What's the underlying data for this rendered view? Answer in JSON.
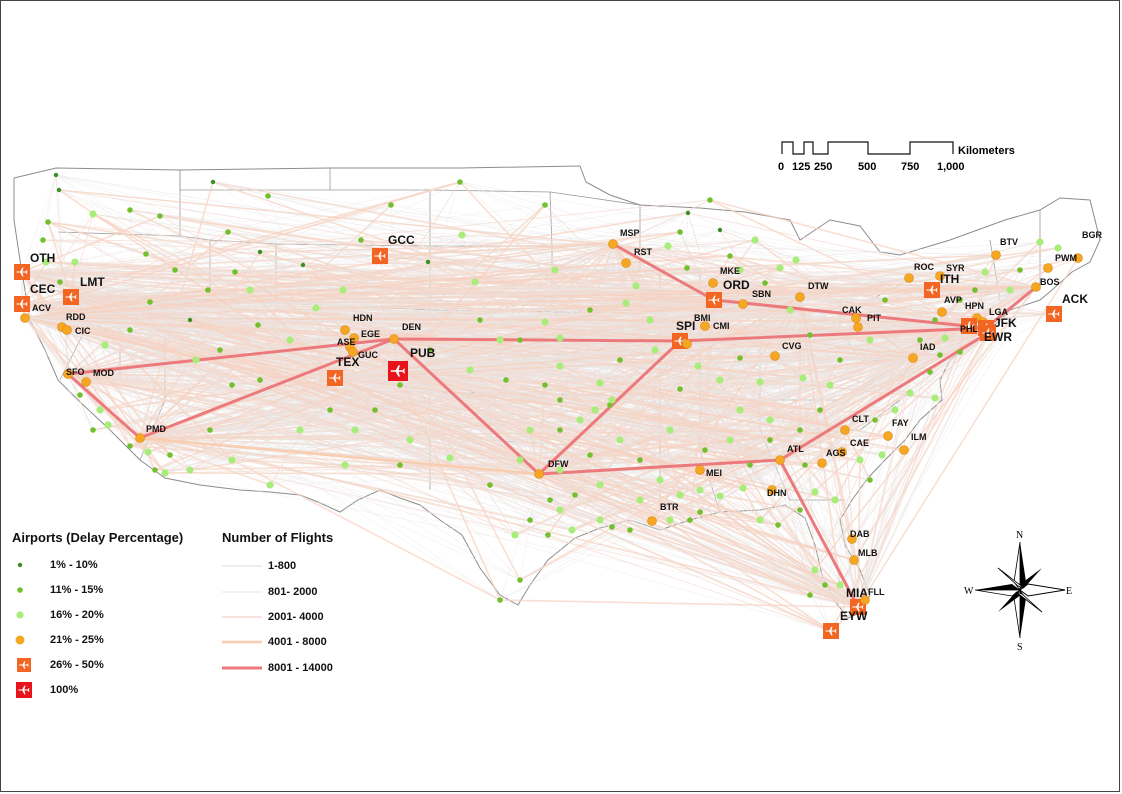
{
  "scalebar": {
    "unit": "Kilometers",
    "ticks": [
      "0",
      "125",
      "250",
      "500",
      "750",
      "1,000"
    ]
  },
  "legend": {
    "airports_title": "Airports (Delay Percentage)",
    "airports": [
      {
        "label": "1% - 10%",
        "symbol": "dot-small",
        "color": "#3a8f24"
      },
      {
        "label": "11% - 15%",
        "symbol": "dot-medium",
        "color": "#73c02f"
      },
      {
        "label": "16% - 20%",
        "symbol": "dot-large",
        "color": "#a8ec7a"
      },
      {
        "label": "21% - 25%",
        "symbol": "dot-orange",
        "color": "#f5a623"
      },
      {
        "label": "26% - 50%",
        "symbol": "plane-orange",
        "color": "#f26522"
      },
      {
        "label": "100%",
        "symbol": "plane-red",
        "color": "#e8141b"
      }
    ],
    "flights_title": "Number of Flights",
    "flights": [
      {
        "label": "1-800",
        "color": "#eeeeee",
        "width": 1
      },
      {
        "label": "801- 2000",
        "color": "#e6e6e6",
        "width": 1
      },
      {
        "label": "2001- 4000",
        "color": "#f3d9cf",
        "width": 1.5
      },
      {
        "label": "4001 - 8000",
        "color": "#f8cdb0",
        "width": 2.5
      },
      {
        "label": "8001 - 14000",
        "color": "#ec7a7c",
        "width": 3
      }
    ]
  },
  "compass": {
    "n": "N",
    "s": "S",
    "e": "E",
    "w": "W"
  },
  "airports": [
    {
      "code": "OTH",
      "cls": "plane-orange",
      "icon": "airplane-icon"
    },
    {
      "code": "CEC",
      "cls": "plane-orange",
      "icon": "airplane-icon"
    },
    {
      "code": "ACV",
      "cls": "dot-orange"
    },
    {
      "code": "LMT",
      "cls": "plane-orange",
      "icon": "airplane-icon"
    },
    {
      "code": "RDD",
      "cls": "dot-orange"
    },
    {
      "code": "CIC",
      "cls": "dot-orange"
    },
    {
      "code": "SFO",
      "cls": "dot-orange"
    },
    {
      "code": "MOD",
      "cls": "dot-orange"
    },
    {
      "code": "PMD",
      "cls": "dot-orange"
    },
    {
      "code": "GCC",
      "cls": "plane-orange",
      "icon": "airplane-icon"
    },
    {
      "code": "HDN",
      "cls": "dot-orange"
    },
    {
      "code": "EGE",
      "cls": "dot-orange"
    },
    {
      "code": "ASE",
      "cls": "dot-orange"
    },
    {
      "code": "GUC",
      "cls": "dot-orange"
    },
    {
      "code": "TEX",
      "cls": "plane-orange",
      "icon": "airplane-icon"
    },
    {
      "code": "DEN",
      "cls": "dot-orange"
    },
    {
      "code": "PUB",
      "cls": "plane-red",
      "icon": "airplane-icon"
    },
    {
      "code": "MSP",
      "cls": "dot-orange"
    },
    {
      "code": "RST",
      "cls": "dot-orange"
    },
    {
      "code": "MKE",
      "cls": "dot-orange"
    },
    {
      "code": "ORD",
      "cls": "plane-orange",
      "icon": "airplane-icon"
    },
    {
      "code": "SBN",
      "cls": "dot-orange"
    },
    {
      "code": "DTW",
      "cls": "dot-orange"
    },
    {
      "code": "SPI",
      "cls": "plane-orange",
      "icon": "airplane-icon"
    },
    {
      "code": "BMI",
      "cls": "dot-orange"
    },
    {
      "code": "CMI",
      "cls": "dot-orange"
    },
    {
      "code": "CVG",
      "cls": "dot-orange"
    },
    {
      "code": "CAK",
      "cls": "dot-orange"
    },
    {
      "code": "PIT",
      "cls": "dot-orange"
    },
    {
      "code": "ROC",
      "cls": "dot-orange"
    },
    {
      "code": "SYR",
      "cls": "dot-orange"
    },
    {
      "code": "ITH",
      "cls": "plane-orange",
      "icon": "airplane-icon"
    },
    {
      "code": "BTV",
      "cls": "dot-orange"
    },
    {
      "code": "BGR",
      "cls": "dot-orange"
    },
    {
      "code": "PWM",
      "cls": "dot-orange"
    },
    {
      "code": "BOS",
      "cls": "dot-orange"
    },
    {
      "code": "ACK",
      "cls": "plane-orange",
      "icon": "airplane-icon"
    },
    {
      "code": "AVP",
      "cls": "dot-orange"
    },
    {
      "code": "HPN",
      "cls": "dot-orange"
    },
    {
      "code": "LGA",
      "cls": "dot-orange"
    },
    {
      "code": "JFK",
      "cls": "plane-orange",
      "icon": "airplane-icon"
    },
    {
      "code": "PHL",
      "cls": "plane-orange",
      "icon": "airplane-icon"
    },
    {
      "code": "EWR",
      "cls": "plane-orange",
      "icon": "airplane-icon"
    },
    {
      "code": "IAD",
      "cls": "dot-orange"
    },
    {
      "code": "DFW",
      "cls": "dot-orange"
    },
    {
      "code": "ATL",
      "cls": "dot-orange"
    },
    {
      "code": "CLT",
      "cls": "dot-orange"
    },
    {
      "code": "FAY",
      "cls": "dot-orange"
    },
    {
      "code": "CAE",
      "cls": "dot-orange"
    },
    {
      "code": "ILM",
      "cls": "dot-orange"
    },
    {
      "code": "AGS",
      "cls": "dot-orange"
    },
    {
      "code": "MEI",
      "cls": "dot-orange"
    },
    {
      "code": "DHN",
      "cls": "dot-orange"
    },
    {
      "code": "BTR",
      "cls": "dot-orange"
    },
    {
      "code": "DAB",
      "cls": "dot-orange"
    },
    {
      "code": "MLB",
      "cls": "dot-orange"
    },
    {
      "code": "MIA",
      "cls": "plane-orange",
      "icon": "airplane-icon"
    },
    {
      "code": "FLL",
      "cls": "dot-orange"
    },
    {
      "code": "EYW",
      "cls": "plane-orange",
      "icon": "airplane-icon"
    }
  ],
  "routes": [
    {
      "from": "SFO",
      "to": "DEN",
      "flights": "8001 - 14000"
    },
    {
      "from": "PMD",
      "to": "DEN",
      "flights": "8001 - 14000"
    },
    {
      "from": "DEN",
      "to": "SPI",
      "flights": "8001 - 14000"
    },
    {
      "from": "DEN",
      "to": "DFW",
      "flights": "8001 - 14000"
    },
    {
      "from": "DFW",
      "to": "SPI",
      "flights": "8001 - 14000"
    },
    {
      "from": "DFW",
      "to": "ATL",
      "flights": "8001 - 14000"
    },
    {
      "from": "ATL",
      "to": "MIA",
      "flights": "8001 - 14000"
    },
    {
      "from": "ATL",
      "to": "EWR",
      "flights": "8001 - 14000"
    },
    {
      "from": "ORD",
      "to": "JFK",
      "flights": "8001 - 14000"
    },
    {
      "from": "SPI",
      "to": "JFK",
      "flights": "8001 - 14000"
    },
    {
      "from": "MSP",
      "to": "ORD",
      "flights": "8001 - 14000"
    },
    {
      "from": "JFK",
      "to": "BOS",
      "flights": "8001 - 14000"
    },
    {
      "from": "SFO",
      "to": "PMD",
      "flights": "8001 - 14000"
    },
    {
      "from": "PMD",
      "to": "DFW",
      "flights": "4001 - 8000"
    }
  ]
}
